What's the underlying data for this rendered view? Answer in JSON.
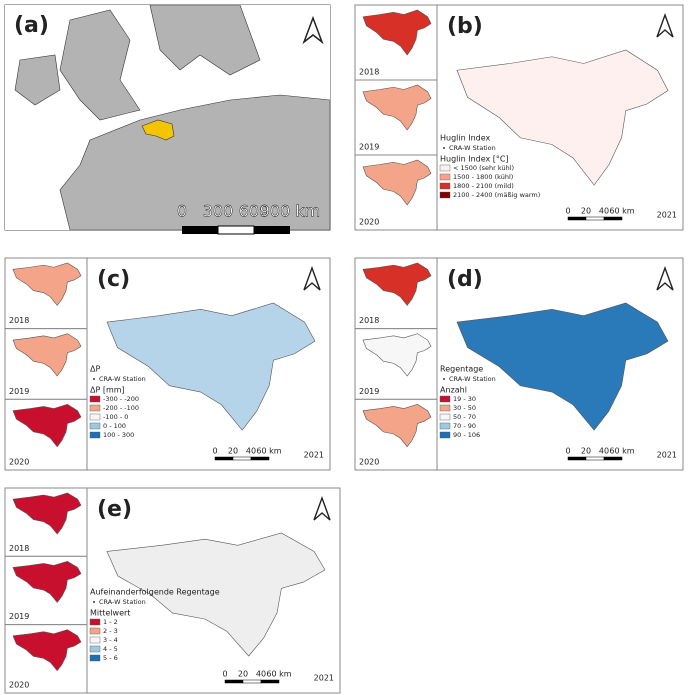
{
  "overview": {
    "label": "(a)",
    "scale": [
      "0",
      "300",
      "600",
      "900 km"
    ]
  },
  "panels": [
    {
      "label": "(b)",
      "insets": [
        "2018",
        "2019",
        "2020"
      ],
      "main_year": "2021",
      "legend": {
        "title": "Huglin Index",
        "station": "CRA-W Station",
        "subtitle": "Huglin Index [°C]",
        "items": [
          {
            "label": "< 1500 (sehr kühl)",
            "color": "#fdf0ee"
          },
          {
            "label": "1500 - 1800 (kühl)",
            "color": "#f4a489"
          },
          {
            "label": "1800 - 2100 (mild)",
            "color": "#d73027"
          },
          {
            "label": "2100 - 2400 (mäßig warm)",
            "color": "#7f0000"
          }
        ]
      },
      "scale": [
        "0",
        "20",
        "40",
        "60 km"
      ]
    },
    {
      "label": "(c)",
      "insets": [
        "2018",
        "2019",
        "2020"
      ],
      "main_year": "2021",
      "legend": {
        "title": "ΔP",
        "station": "CRA-W Station",
        "subtitle": "ΔP [mm]",
        "items": [
          {
            "label": "-300 - -200",
            "color": "#c8102e"
          },
          {
            "label": "-200 - -100",
            "color": "#f4a489"
          },
          {
            "label": "-100 - 0",
            "color": "#f7f7f7"
          },
          {
            "label": "0 - 100",
            "color": "#9ecae1"
          },
          {
            "label": "100 - 300",
            "color": "#1f6fb4"
          }
        ]
      },
      "scale": [
        "0",
        "20",
        "40",
        "60 km"
      ]
    },
    {
      "label": "(d)",
      "insets": [
        "2018",
        "2019",
        "2020"
      ],
      "main_year": "2021",
      "legend": {
        "title": "Regentage",
        "station": "CRA-W Station",
        "subtitle": "Anzahl",
        "items": [
          {
            "label": "19 - 30",
            "color": "#c8102e"
          },
          {
            "label": "30 - 50",
            "color": "#f4a489"
          },
          {
            "label": "50 - 70",
            "color": "#f7f7f7"
          },
          {
            "label": "70 - 90",
            "color": "#9ecae1"
          },
          {
            "label": "90 - 106",
            "color": "#1f6fb4"
          }
        ]
      },
      "scale": [
        "0",
        "20",
        "40",
        "60 km"
      ]
    },
    {
      "label": "(e)",
      "insets": [
        "2018",
        "2019",
        "2020"
      ],
      "main_year": "2021",
      "legend": {
        "title": "Aufeinanderfolgende Regentage",
        "station": "CRA-W Station",
        "subtitle": "Mittelwert",
        "items": [
          {
            "label": "1 - 2",
            "color": "#c8102e"
          },
          {
            "label": "2 - 3",
            "color": "#f4a489"
          },
          {
            "label": "3 - 4",
            "color": "#f7f7f7"
          },
          {
            "label": "4 - 5",
            "color": "#9ecae1"
          },
          {
            "label": "5 - 6",
            "color": "#1f6fb4"
          }
        ]
      },
      "scale": [
        "0",
        "20",
        "40",
        "60 km"
      ]
    }
  ]
}
